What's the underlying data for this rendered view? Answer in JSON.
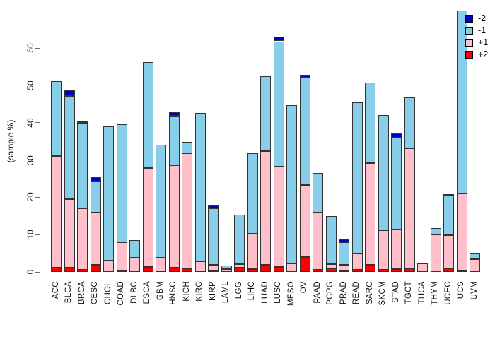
{
  "figure": {
    "title": "",
    "y_axis_label": "(sample %)",
    "y_tick_labels": [
      "0",
      "10",
      "20",
      "30",
      "40",
      "50",
      "60"
    ]
  },
  "legend": {
    "items": [
      {
        "label": "-2",
        "color": "#0000CD"
      },
      {
        "label": "-1",
        "color": "#87CEEB"
      },
      {
        "label": "+1",
        "color": "#FFC0CB"
      },
      {
        "label": "+2",
        "color": "#FF0000"
      }
    ]
  },
  "chart_data": {
    "type": "bar",
    "stacked": true,
    "title": "",
    "xlabel": "",
    "ylabel": "(sample %)",
    "ylim": [
      0,
      60
    ],
    "yticks": [
      0,
      10,
      20,
      30,
      40,
      50,
      60
    ],
    "grid": false,
    "legend_position": "top-right",
    "categories": [
      "ACC",
      "BLCA",
      "BRCA",
      "CESC",
      "CHOL",
      "COAD",
      "DLBC",
      "ESCA",
      "GBM",
      "HNSC",
      "KICH",
      "KIRC",
      "KIRP",
      "LAML",
      "LGG",
      "LIHC",
      "LUAD",
      "LUSC",
      "MESO",
      "OV",
      "PAAD",
      "PCPG",
      "PRAD",
      "READ",
      "SARC",
      "SKCM",
      "STAD",
      "TGCT",
      "THCA",
      "THYM",
      "UCEC",
      "UCS",
      "UVM"
    ],
    "stack_order_bottom_to_top": [
      "+2",
      "+1",
      "-1",
      "-2"
    ],
    "series": [
      {
        "name": "+2",
        "color": "#FF0000",
        "values": [
          1.2,
          1.1,
          0.6,
          1.9,
          0,
          0.4,
          0,
          1.4,
          0,
          1.1,
          1.0,
          0,
          0.4,
          0,
          1.1,
          0.8,
          1.8,
          1.4,
          0,
          4.0,
          0.5,
          0.9,
          0.3,
          0.5,
          1.9,
          0.6,
          0.7,
          0.9,
          0,
          0,
          0.9,
          0.4,
          0
        ]
      },
      {
        "name": "+1",
        "color": "#FFC0CB",
        "values": [
          29.8,
          18.4,
          16.4,
          14.0,
          3.0,
          7.5,
          3.7,
          26.5,
          3.7,
          27.4,
          30.8,
          2.8,
          1.4,
          0.8,
          0.9,
          9.4,
          30.5,
          26.8,
          2.2,
          19.2,
          15.4,
          1.1,
          1.5,
          4.5,
          27.3,
          10.6,
          10.7,
          32.2,
          2.3,
          10.0,
          9.0,
          20.7,
          3.4
        ]
      },
      {
        "name": "-1",
        "color": "#87CEEB",
        "values": [
          20.1,
          27.7,
          22.9,
          8.3,
          35.9,
          31.7,
          4.8,
          28.4,
          30.4,
          13.4,
          3.0,
          39.7,
          15.2,
          0.9,
          13.3,
          21.6,
          20.1,
          33.6,
          42.4,
          28.9,
          10.6,
          13.0,
          6.1,
          40.5,
          21.5,
          30.9,
          24.5,
          13.6,
          0,
          1.8,
          10.8,
          48.9,
          1.8
        ]
      },
      {
        "name": "-2",
        "color": "#0000CD",
        "values": [
          0,
          1.4,
          0.4,
          1.1,
          0,
          0,
          0,
          0,
          0,
          0.8,
          0,
          0,
          1.0,
          0,
          0,
          0,
          0,
          1.2,
          0,
          0.7,
          0,
          0,
          0.9,
          0,
          0,
          0,
          1.2,
          0,
          0,
          0,
          0.4,
          0,
          0
        ]
      }
    ],
    "totals": [
      51.1,
      48.6,
      40.3,
      25.3,
      38.9,
      39.6,
      8.5,
      56.3,
      34.1,
      42.7,
      34.8,
      42.5,
      18.0,
      1.7,
      15.3,
      31.8,
      52.4,
      63.0,
      44.6,
      52.8,
      26.5,
      15.0,
      8.8,
      45.5,
      50.7,
      42.1,
      37.1,
      46.7,
      2.3,
      11.8,
      21.1,
      70.0,
      5.2
    ]
  }
}
